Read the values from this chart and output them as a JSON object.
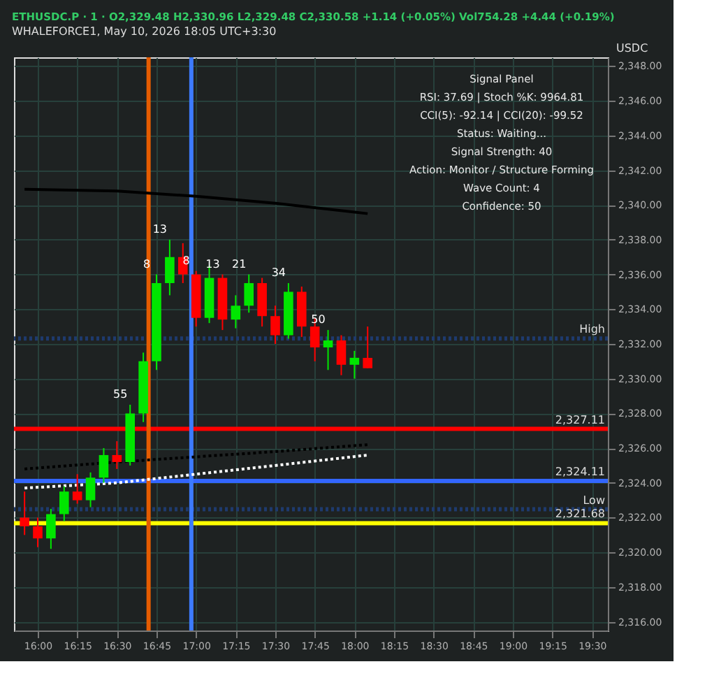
{
  "chart_data": {
    "type": "candlestick",
    "title": "ETHUSDC.P · 1 · O2,329.48 H2,330.96 L2,329.48 C2,330.58 +1.14 (+0.05%) Vol754.28 +4.44 (+0.19%)",
    "subtitle": "WHALEFORCE1, May 10, 2026 18:05 UTC+3:30",
    "x": [
      15.9167,
      16.0,
      16.0833,
      16.1667,
      16.25,
      16.3333,
      16.4167,
      16.5,
      16.5833,
      16.6667,
      16.75,
      16.8333,
      16.9167,
      17.0,
      17.0833,
      17.1667,
      17.25,
      17.3333,
      17.4167,
      17.5,
      17.5833,
      17.6667,
      17.75,
      17.8333,
      17.9167,
      18.0,
      18.0833
    ],
    "ohlc": [
      [
        2322.0,
        2323.5,
        2321.0,
        2321.5
      ],
      [
        2321.5,
        2322.0,
        2320.3,
        2320.8
      ],
      [
        2320.8,
        2322.5,
        2320.2,
        2322.2
      ],
      [
        2322.2,
        2323.8,
        2321.8,
        2323.5
      ],
      [
        2323.5,
        2324.5,
        2322.8,
        2323.0
      ],
      [
        2323.0,
        2324.6,
        2322.6,
        2324.3
      ],
      [
        2324.3,
        2326.0,
        2324.0,
        2325.6
      ],
      [
        2325.6,
        2326.4,
        2324.8,
        2325.2
      ],
      [
        2325.2,
        2328.5,
        2325.0,
        2328.0
      ],
      [
        2328.0,
        2331.5,
        2327.5,
        2331.0
      ],
      [
        2331.0,
        2336.0,
        2330.5,
        2335.5
      ],
      [
        2335.5,
        2338.0,
        2334.8,
        2337.0
      ],
      [
        2337.0,
        2337.8,
        2335.5,
        2336.0
      ],
      [
        2336.0,
        2336.2,
        2333.0,
        2333.5
      ],
      [
        2333.5,
        2336.5,
        2333.2,
        2335.8
      ],
      [
        2335.8,
        2336.0,
        2332.8,
        2333.4
      ],
      [
        2333.4,
        2334.8,
        2332.9,
        2334.2
      ],
      [
        2334.2,
        2336.0,
        2333.8,
        2335.5
      ],
      [
        2335.5,
        2335.8,
        2333.0,
        2333.6
      ],
      [
        2333.6,
        2334.2,
        2332.0,
        2332.5
      ],
      [
        2332.5,
        2335.5,
        2332.3,
        2335.0
      ],
      [
        2335.0,
        2335.3,
        2332.4,
        2333.0
      ],
      [
        2333.0,
        2333.5,
        2331.0,
        2331.8
      ],
      [
        2331.8,
        2332.8,
        2330.5,
        2332.2
      ],
      [
        2332.2,
        2332.5,
        2330.2,
        2330.8
      ],
      [
        2330.8,
        2331.6,
        2330.0,
        2331.2
      ],
      [
        2331.2,
        2333.0,
        2330.6,
        2330.6
      ]
    ],
    "colors": [
      "#ff0000",
      "#ff0000",
      "#00e600",
      "#00e600",
      "#ff0000",
      "#00e600",
      "#00e600",
      "#ff0000",
      "#00e600",
      "#00e600",
      "#00e600",
      "#00e600",
      "#ff0000",
      "#ff0000",
      "#00e600",
      "#ff0000",
      "#00e600",
      "#00e600",
      "#ff0000",
      "#ff0000",
      "#00e600",
      "#ff0000",
      "#ff0000",
      "#00e600",
      "#ff0000",
      "#00e600",
      "#ff0000"
    ],
    "series": [
      {
        "type": "line",
        "color": "#000000",
        "x": [
          15.9167,
          16.5,
          17.0,
          17.5,
          18.0833
        ],
        "values": [
          2340.9,
          2340.8,
          2340.5,
          2340.1,
          2339.5
        ]
      },
      {
        "type": "line",
        "color": "#ffffff",
        "line_style": "dotted",
        "x": [
          15.9167,
          16.5,
          17.0,
          17.5,
          18.0833
        ],
        "values": [
          2323.7,
          2324.0,
          2324.5,
          2325.0,
          2325.6
        ]
      },
      {
        "type": "line",
        "color": "#000000",
        "line_style": "dotted",
        "x": [
          15.9167,
          16.5,
          17.0,
          17.5,
          18.0833
        ],
        "values": [
          2324.8,
          2325.2,
          2325.5,
          2325.8,
          2326.2
        ]
      }
    ],
    "ref_lines": [
      {
        "axis": "y",
        "value": 2332.31,
        "label": "High",
        "color": "#1e3a6e",
        "line_style": "dotted"
      },
      {
        "axis": "y",
        "value": 2322.48,
        "label": "Low",
        "color": "#1e3a6e",
        "line_style": "dotted"
      },
      {
        "axis": "y",
        "value": 2321.68,
        "label": "2,321.68",
        "color": "#ffff00"
      },
      {
        "axis": "y",
        "value": 2324.11,
        "label": "2,324.11",
        "color": "#3366ff"
      },
      {
        "axis": "y",
        "value": 2327.11,
        "label": "2,327.11",
        "color": "#ff0000"
      },
      {
        "axis": "x",
        "value": 16.7,
        "color": "#e65c00"
      },
      {
        "axis": "x",
        "value": 16.97,
        "color": "#3d7bff"
      }
    ],
    "annotations": [
      "Signal Panel",
      "RSI: 37.69 | Stoch %K: 9964.81",
      "CCI(5): -92.14 | CCI(20): -99.52",
      "Status: Waiting...",
      "Signal Strength: 40",
      "Action: Monitor / Structure Forming",
      "Wave Count: 4",
      "Confidence: 50",
      "USDC",
      {
        "text": "55",
        "x": 16.5833,
        "y": 2328.5
      },
      {
        "text": "8",
        "x": 16.75,
        "y": 2336.0
      },
      {
        "text": "13",
        "x": 16.8333,
        "y": 2338.0
      },
      {
        "text": "8",
        "x": 17.0,
        "y": 2336.2
      },
      {
        "text": "13",
        "x": 17.1667,
        "y": 2336.0
      },
      {
        "text": "21",
        "x": 17.3333,
        "y": 2336.0
      },
      {
        "text": "34",
        "x": 17.5833,
        "y": 2335.5
      },
      {
        "text": "50",
        "x": 17.8333,
        "y": 2332.8
      }
    ],
    "xlim": [
      15.85,
      19.6
    ],
    "xticks": [
      {
        "value": 16.0,
        "label": "16:00"
      },
      {
        "value": 16.25,
        "label": "16:15"
      },
      {
        "value": 16.5,
        "label": "16:30"
      },
      {
        "value": 16.75,
        "label": "16:45"
      },
      {
        "value": 17.0,
        "label": "17:00"
      },
      {
        "value": 17.25,
        "label": "17:15"
      },
      {
        "value": 17.5,
        "label": "17:30"
      },
      {
        "value": 17.75,
        "label": "17:45"
      },
      {
        "value": 18.0,
        "label": "18:00"
      },
      {
        "value": 18.25,
        "label": "18:15"
      },
      {
        "value": 18.5,
        "label": "18:30"
      },
      {
        "value": 18.75,
        "label": "18:45"
      },
      {
        "value": 19.0,
        "label": "19:00"
      },
      {
        "value": 19.25,
        "label": "19:15"
      },
      {
        "value": 19.5,
        "label": "19:30"
      }
    ],
    "ylim": [
      2315.5,
      2348.5
    ],
    "yticks": [
      {
        "value": 2316,
        "label": "2,316.00"
      },
      {
        "value": 2318,
        "label": "2,318.00"
      },
      {
        "value": 2320,
        "label": "2,320.00"
      },
      {
        "value": 2322,
        "label": "2,322.00"
      },
      {
        "value": 2324,
        "label": "2,324.00"
      },
      {
        "value": 2326,
        "label": "2,326.00"
      },
      {
        "value": 2328,
        "label": "2,328.00"
      },
      {
        "value": 2330,
        "label": "2,330.00"
      },
      {
        "value": 2332,
        "label": "2,332.00"
      },
      {
        "value": 2334,
        "label": "2,334.00"
      },
      {
        "value": 2336,
        "label": "2,336.00"
      },
      {
        "value": 2338,
        "label": "2,338.00"
      },
      {
        "value": 2340,
        "label": "2,340.00"
      },
      {
        "value": 2342,
        "label": "2,342.00"
      },
      {
        "value": 2344,
        "label": "2,344.00"
      },
      {
        "value": 2346,
        "label": "2,346.00"
      },
      {
        "value": 2348,
        "label": "2,348.00"
      }
    ],
    "grid": true
  }
}
